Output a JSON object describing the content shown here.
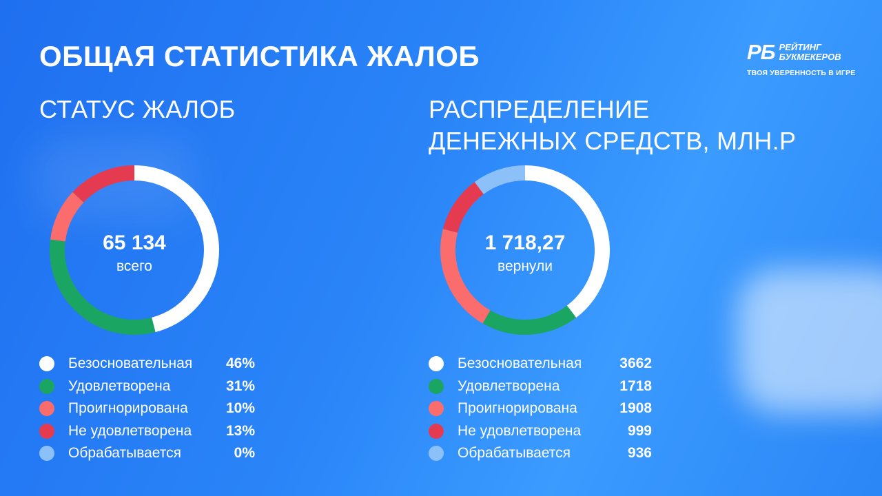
{
  "header": {
    "title": "ОБЩАЯ СТАТИСТИКА ЖАЛОБ",
    "logo_mark": "РБ",
    "logo_line1": "РЕЙТИНГ",
    "logo_line2": "БУКМЕКЕРОВ",
    "slogan": "ТВОЯ УВЕРЕННОСТЬ В ИГРЕ"
  },
  "colors": {
    "Безосновательная": "#ffffff",
    "Удовлетворена": "#1aa563",
    "Проигнорирована": "#fb6c6c",
    "Не удовлетворена": "#e53b50",
    "Обрабатывается": "#8cc0f8"
  },
  "chart_data": [
    {
      "type": "pie",
      "title": "СТАТУС ЖАЛОБ",
      "center_value": "65 134",
      "center_label": "всего",
      "categories": [
        "Безосновательная",
        "Удовлетворена",
        "Проигнорирована",
        "Не удовлетворена",
        "Обрабатывается"
      ],
      "values": [
        46,
        31,
        10,
        13,
        0
      ],
      "value_labels": [
        "46%",
        "31%",
        "10%",
        "13%",
        "0%"
      ]
    },
    {
      "type": "pie",
      "title_line1": "РАСПРЕДЕЛЕНИЕ",
      "title_line2": "ДЕНЕЖНЫХ СРЕДСТВ, МЛН.Р",
      "center_value": "1 718,27",
      "center_label": "вернули",
      "categories": [
        "Безосновательная",
        "Удовлетворена",
        "Проигнорирована",
        "Не удовлетворена",
        "Обрабатывается"
      ],
      "values": [
        3662,
        1718,
        1908,
        999,
        936
      ],
      "value_labels": [
        "3662",
        "1718",
        "1908",
        "999",
        "936"
      ]
    }
  ]
}
